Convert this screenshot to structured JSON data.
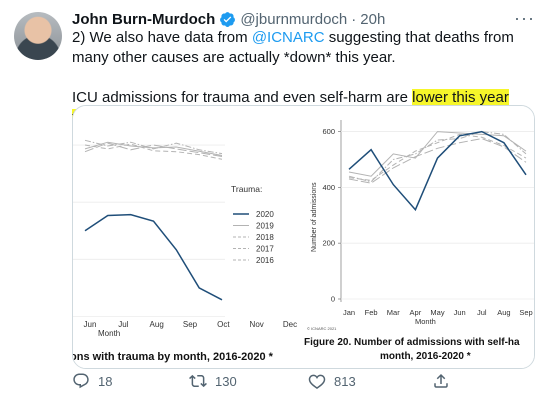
{
  "tweet": {
    "author_name": "John Burn-Murdoch",
    "handle": "@jburnmurdoch",
    "separator": "·",
    "time": "20h",
    "more_label": "···",
    "para1_prefix": "2) We also have data from ",
    "para1_mention": "@ICNARC",
    "para1_suffix": " suggesting that deaths from many other causes are actually *down* this year.",
    "para2_prefix": "ICU admissions for trauma and even self-harm are ",
    "para2_highlight": "lower this year than usual.",
    "colors": {
      "highlight": "#f6f62a",
      "link": "#1d9bf0",
      "series_2020": "#1f4e79",
      "series_other": "#b3b3b3"
    }
  },
  "actions": {
    "reply_count": "18",
    "retweet_count": "130",
    "like_count": "813"
  },
  "chart_data": [
    {
      "type": "line",
      "caption": "ons with trauma by month, 2016-2020 *",
      "x": [
        "Jun",
        "Jul",
        "Aug",
        "Sep",
        "Oct",
        "Nov",
        "Dec"
      ],
      "x_visible_prefix": "Jun",
      "xlabel_partial": "Month",
      "legend_title": "Trauma:",
      "series": [
        {
          "name": "2020",
          "values": [
            640,
            672,
            674,
            660,
            600,
            520,
            495
          ],
          "style": "solid"
        },
        {
          "name": "2019",
          "values": [
            812,
            826,
            818,
            814,
            816,
            807,
            798
          ],
          "style": "solid-grey"
        },
        {
          "name": "2018",
          "values": [
            820,
            812,
            822,
            808,
            806,
            800,
            790
          ],
          "style": "dash"
        },
        {
          "name": "2017",
          "values": [
            830,
            818,
            826,
            812,
            824,
            810,
            802
          ],
          "style": "dashdot"
        },
        {
          "name": "2016",
          "values": [
            806,
            824,
            810,
            820,
            812,
            804,
            796
          ],
          "style": "longdash"
        }
      ],
      "ylim": [
        440,
        860
      ]
    },
    {
      "type": "line",
      "caption_line1": "Figure 20. Number of admissions with self-ha",
      "caption_line2": "month, 2016-2020 *",
      "footnote": "© ICNARC 2021",
      "x": [
        "Jan",
        "Feb",
        "Mar",
        "Apr",
        "May",
        "Jun",
        "Jul",
        "Aug",
        "Sep"
      ],
      "xlabel": "Month",
      "ylabel": "Number of admissions",
      "ylim": [
        0,
        620
      ],
      "yticks": [
        0,
        200,
        400,
        600
      ],
      "series": [
        {
          "name": "2020",
          "values": [
            465,
            535,
            410,
            320,
            505,
            585,
            600,
            560,
            445
          ],
          "style": "solid"
        },
        {
          "name": "2019",
          "values": [
            455,
            440,
            520,
            505,
            600,
            595,
            590,
            585,
            530
          ],
          "style": "solid-grey"
        },
        {
          "name": "2018",
          "values": [
            435,
            425,
            480,
            530,
            560,
            590,
            580,
            550,
            505
          ],
          "style": "dash"
        },
        {
          "name": "2017",
          "values": [
            440,
            420,
            500,
            520,
            570,
            575,
            600,
            590,
            520
          ],
          "style": "dashdot"
        },
        {
          "name": "2016",
          "values": [
            430,
            415,
            470,
            510,
            540,
            560,
            575,
            545,
            490
          ],
          "style": "longdash"
        }
      ]
    }
  ]
}
